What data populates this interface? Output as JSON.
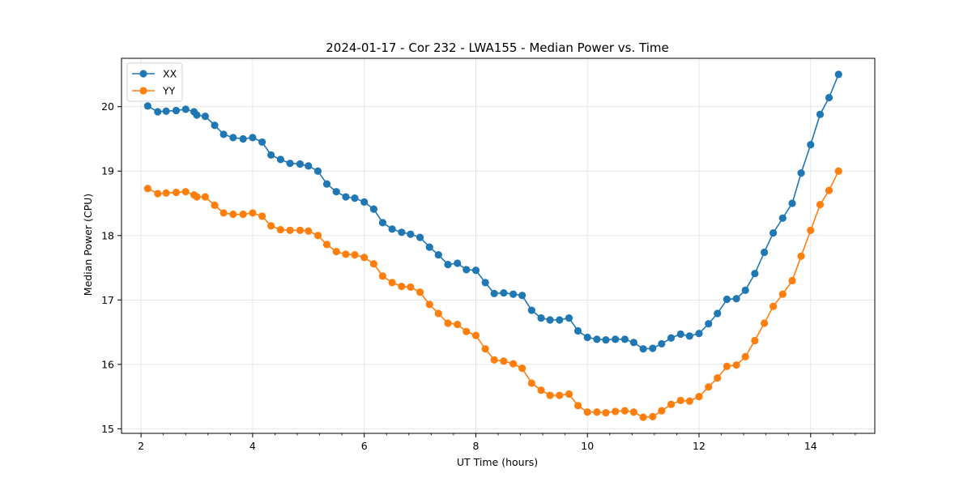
{
  "chart_data": {
    "type": "line",
    "title": "2024-01-17 - Cor 232 - LWA155 - Median Power vs. Time",
    "xlabel": "UT Time (hours)",
    "ylabel": "Median Power (CPU)",
    "xlim": [
      1.65,
      15.15
    ],
    "ylim": [
      14.93,
      20.75
    ],
    "xticks": [
      2,
      4,
      6,
      8,
      10,
      12,
      14
    ],
    "xticks_minor_step": 0.4,
    "yticks": [
      15,
      16,
      17,
      18,
      19,
      20
    ],
    "grid": true,
    "legend_position": "top-left",
    "series": [
      {
        "name": "XX",
        "color": "#1f77b4",
        "x": [
          2.12,
          2.3,
          2.45,
          2.63,
          2.8,
          2.95,
          3.0,
          3.15,
          3.32,
          3.48,
          3.65,
          3.83,
          4.0,
          4.17,
          4.33,
          4.5,
          4.67,
          4.85,
          5.0,
          5.17,
          5.33,
          5.5,
          5.67,
          5.83,
          6.0,
          6.17,
          6.33,
          6.5,
          6.67,
          6.83,
          7.0,
          7.17,
          7.33,
          7.5,
          7.67,
          7.83,
          8.0,
          8.17,
          8.33,
          8.5,
          8.67,
          8.83,
          9.0,
          9.17,
          9.33,
          9.5,
          9.67,
          9.83,
          10.0,
          10.17,
          10.33,
          10.5,
          10.67,
          10.83,
          11.0,
          11.17,
          11.33,
          11.5,
          11.67,
          11.83,
          12.0,
          12.17,
          12.33,
          12.5,
          12.67,
          12.83,
          13.0,
          13.17,
          13.33,
          13.5,
          13.67,
          13.83,
          14.0,
          14.17,
          14.33,
          14.5
        ],
        "y": [
          20.01,
          19.92,
          19.93,
          19.94,
          19.96,
          19.92,
          19.87,
          19.85,
          19.71,
          19.57,
          19.52,
          19.5,
          19.52,
          19.45,
          19.25,
          19.18,
          19.12,
          19.11,
          19.08,
          19.0,
          18.8,
          18.68,
          18.6,
          18.58,
          18.52,
          18.41,
          18.2,
          18.1,
          18.05,
          18.02,
          17.97,
          17.82,
          17.7,
          17.55,
          17.57,
          17.47,
          17.46,
          17.27,
          17.1,
          17.11,
          17.09,
          17.07,
          16.84,
          16.72,
          16.69,
          16.69,
          16.72,
          16.52,
          16.42,
          16.39,
          16.38,
          16.39,
          16.39,
          16.34,
          16.24,
          16.25,
          16.32,
          16.41,
          16.47,
          16.44,
          16.48,
          16.63,
          16.79,
          17.01,
          17.02,
          17.15,
          17.41,
          17.74,
          18.04,
          18.27,
          18.5,
          18.97,
          19.41,
          19.88,
          20.14,
          20.5
        ]
      },
      {
        "name": "YY",
        "color": "#ff7f0e",
        "x": [
          2.12,
          2.3,
          2.45,
          2.63,
          2.8,
          2.95,
          3.0,
          3.15,
          3.32,
          3.48,
          3.65,
          3.83,
          4.0,
          4.17,
          4.33,
          4.5,
          4.67,
          4.85,
          5.0,
          5.17,
          5.33,
          5.5,
          5.67,
          5.83,
          6.0,
          6.17,
          6.33,
          6.5,
          6.67,
          6.83,
          7.0,
          7.17,
          7.33,
          7.5,
          7.67,
          7.83,
          8.0,
          8.17,
          8.33,
          8.5,
          8.67,
          8.83,
          9.0,
          9.17,
          9.33,
          9.5,
          9.67,
          9.83,
          10.0,
          10.17,
          10.33,
          10.5,
          10.67,
          10.83,
          11.0,
          11.17,
          11.33,
          11.5,
          11.67,
          11.83,
          12.0,
          12.17,
          12.33,
          12.5,
          12.67,
          12.83,
          13.0,
          13.17,
          13.33,
          13.5,
          13.67,
          13.83,
          14.0,
          14.17,
          14.33,
          14.5
        ],
        "y": [
          18.73,
          18.65,
          18.66,
          18.67,
          18.68,
          18.63,
          18.6,
          18.6,
          18.47,
          18.35,
          18.33,
          18.33,
          18.35,
          18.3,
          18.15,
          18.09,
          18.08,
          18.08,
          18.07,
          18.0,
          17.86,
          17.75,
          17.71,
          17.7,
          17.66,
          17.56,
          17.37,
          17.27,
          17.21,
          17.2,
          17.12,
          16.93,
          16.79,
          16.64,
          16.62,
          16.51,
          16.45,
          16.24,
          16.07,
          16.05,
          16.01,
          15.94,
          15.71,
          15.6,
          15.52,
          15.52,
          15.54,
          15.36,
          15.26,
          15.26,
          15.25,
          15.27,
          15.28,
          15.26,
          15.18,
          15.19,
          15.28,
          15.38,
          15.44,
          15.43,
          15.5,
          15.65,
          15.79,
          15.97,
          15.99,
          16.12,
          16.37,
          16.64,
          16.9,
          17.09,
          17.3,
          17.68,
          18.08,
          18.48,
          18.7,
          19.0
        ]
      }
    ]
  }
}
